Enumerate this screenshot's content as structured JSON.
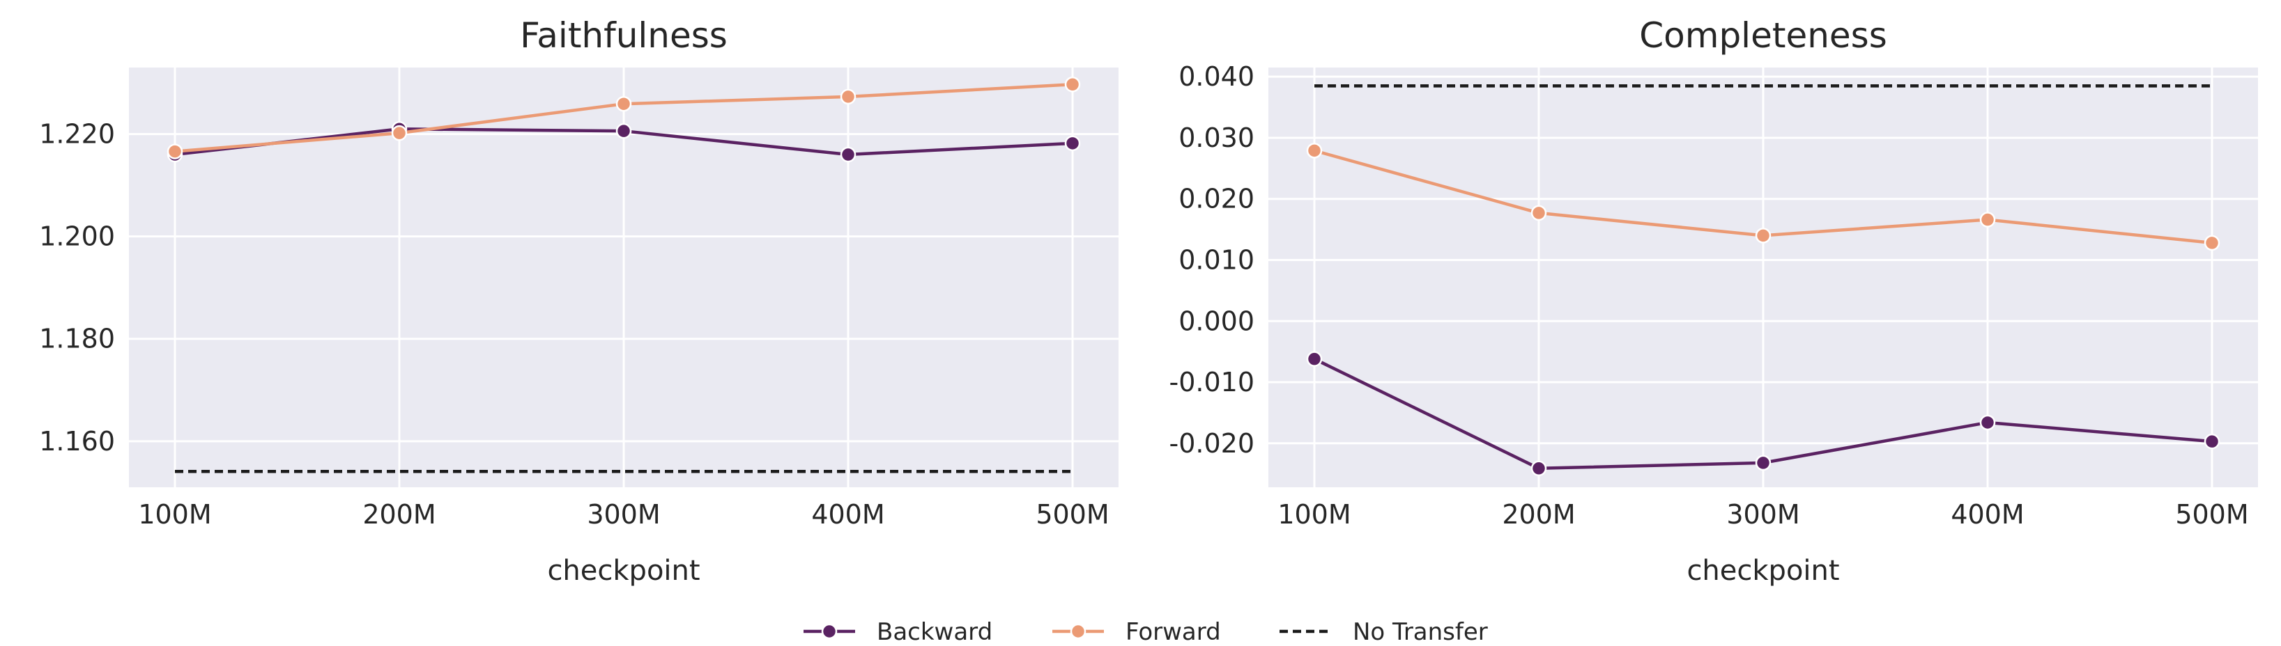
{
  "chart_data": [
    {
      "type": "line",
      "title": "Faithfulness",
      "xlabel": "checkpoint",
      "ylabel": "",
      "categories": [
        "100M",
        "200M",
        "300M",
        "400M",
        "500M"
      ],
      "ylim": [
        1.151,
        1.233
      ],
      "yticks": [
        "1.160",
        "1.180",
        "1.200",
        "1.220"
      ],
      "ytick_values": [
        1.16,
        1.18,
        1.2,
        1.22
      ],
      "series": [
        {
          "name": "Backward",
          "values": [
            1.216,
            1.221,
            1.2206,
            1.216,
            1.2182
          ],
          "color": "#5a2262",
          "style": "solid",
          "marker": true
        },
        {
          "name": "Forward",
          "values": [
            1.2166,
            1.2202,
            1.2259,
            1.2273,
            1.2297
          ],
          "color": "#eb9a74",
          "style": "solid",
          "marker": true
        },
        {
          "name": "No Transfer",
          "values": [
            1.1541,
            1.1541,
            1.1541,
            1.1541,
            1.1541
          ],
          "color": "#1a1a1a",
          "style": "dashed",
          "marker": false
        }
      ],
      "grid": true
    },
    {
      "type": "line",
      "title": "Completeness",
      "xlabel": "checkpoint",
      "ylabel": "",
      "categories": [
        "100M",
        "200M",
        "300M",
        "400M",
        "500M"
      ],
      "ylim": [
        -0.0272,
        0.0415
      ],
      "yticks": [
        "-0.020",
        "-0.010",
        "0.000",
        "0.010",
        "0.020",
        "0.030",
        "0.040"
      ],
      "ytick_values": [
        -0.02,
        -0.01,
        0.0,
        0.01,
        0.02,
        0.03,
        0.04
      ],
      "series": [
        {
          "name": "Backward",
          "values": [
            -0.0062,
            -0.0241,
            -0.0232,
            -0.0166,
            -0.0197
          ],
          "color": "#5a2262",
          "style": "solid",
          "marker": true
        },
        {
          "name": "Forward",
          "values": [
            0.0279,
            0.0177,
            0.014,
            0.0166,
            0.0128
          ],
          "color": "#eb9a74",
          "style": "solid",
          "marker": true
        },
        {
          "name": "No Transfer",
          "values": [
            0.0385,
            0.0385,
            0.0385,
            0.0385,
            0.0385
          ],
          "color": "#1a1a1a",
          "style": "dashed",
          "marker": false
        }
      ],
      "grid": true
    }
  ],
  "legend": {
    "placement": "bottom-center",
    "items": [
      {
        "label": "Backward",
        "color": "#5a2262",
        "style": "solid",
        "marker": true
      },
      {
        "label": "Forward",
        "color": "#eb9a74",
        "style": "solid",
        "marker": true
      },
      {
        "label": "No Transfer",
        "color": "#1a1a1a",
        "style": "dashed",
        "marker": false
      }
    ]
  },
  "colors": {
    "plot_background": "#eaeaf2",
    "grid": "#ffffff"
  }
}
